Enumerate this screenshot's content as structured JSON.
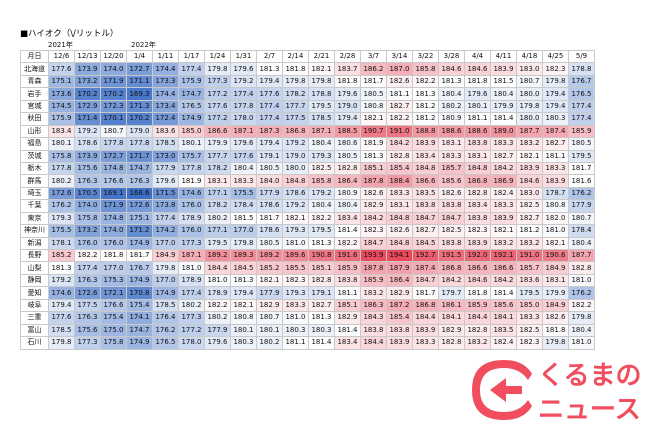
{
  "title": "■ハイオク（\\/リットル）",
  "year_labels": {
    "y2021": "2021年",
    "y2022": "2022年"
  },
  "header": {
    "pref_label": "月日",
    "dates": [
      "12/6",
      "12/13",
      "12/20",
      "1/4",
      "1/11",
      "1/17",
      "1/24",
      "1/31",
      "2/7",
      "2/14",
      "2/21",
      "2/28",
      "3/7",
      "3/14",
      "3/22",
      "3/28",
      "4/4",
      "4/11",
      "4/18",
      "4/25",
      "5/9"
    ]
  },
  "rows": [
    {
      "pref": "北海道",
      "values": [
        "177.6",
        "173.9",
        "174.0",
        "172.7",
        "174.4",
        "177.4",
        "179.8",
        "179.6",
        "181.3",
        "181.8",
        "182.1",
        "183.7",
        "186.2",
        "187.0",
        "185.8",
        "184.6",
        "184.6",
        "183.9",
        "183.0",
        "182.3",
        "178.8"
      ]
    },
    {
      "pref": "青森",
      "values": [
        "175.1",
        "173.2",
        "171.9",
        "171.1",
        "173.3",
        "175.9",
        "177.3",
        "179.2",
        "179.4",
        "179.8",
        "179.8",
        "181.8",
        "181.7",
        "182.6",
        "182.2",
        "181.3",
        "181.8",
        "181.5",
        "180.7",
        "179.8",
        "176.7"
      ]
    },
    {
      "pref": "岩手",
      "values": [
        "173.6",
        "170.2",
        "170.2",
        "169.3",
        "174.4",
        "174.7",
        "177.2",
        "177.4",
        "177.6",
        "178.2",
        "178.8",
        "179.6",
        "180.5",
        "181.1",
        "181.3",
        "180.4",
        "179.6",
        "180.4",
        "180.0",
        "179.4",
        "176.5"
      ]
    },
    {
      "pref": "宮城",
      "values": [
        "174.5",
        "172.9",
        "172.3",
        "171.3",
        "173.4",
        "176.5",
        "177.6",
        "177.8",
        "177.4",
        "177.7",
        "179.5",
        "179.0",
        "180.8",
        "182.7",
        "181.2",
        "180.2",
        "180.1",
        "179.9",
        "179.8",
        "179.4",
        "177.4"
      ]
    },
    {
      "pref": "秋田",
      "values": [
        "175.9",
        "171.4",
        "170.1",
        "170.2",
        "172.4",
        "174.9",
        "177.2",
        "178.0",
        "177.4",
        "177.5",
        "178.5",
        "179.4",
        "182.1",
        "182.2",
        "181.2",
        "180.9",
        "181.1",
        "181.4",
        "180.0",
        "180.3",
        "177.4"
      ]
    },
    {
      "pref": "山形",
      "values": [
        "183.4",
        "179.2",
        "180.7",
        "179.0",
        "183.6",
        "185.0",
        "186.6",
        "187.1",
        "187.3",
        "186.8",
        "187.1",
        "188.5",
        "190.7",
        "191.0",
        "188.8",
        "188.6",
        "188.6",
        "189.0",
        "187.7",
        "187.4",
        "185.9"
      ]
    },
    {
      "pref": "福島",
      "values": [
        "180.1",
        "178.6",
        "177.8",
        "177.8",
        "178.5",
        "180.1",
        "179.9",
        "179.6",
        "179.4",
        "179.2",
        "180.4",
        "180.6",
        "181.9",
        "184.2",
        "183.9",
        "183.1",
        "183.8",
        "183.3",
        "183.2",
        "182.7",
        "180.5"
      ]
    },
    {
      "pref": "茨城",
      "values": [
        "175.8",
        "173.9",
        "172.7",
        "171.7",
        "173.0",
        "175.7",
        "177.7",
        "177.6",
        "179.1",
        "179.0",
        "179.3",
        "180.5",
        "181.3",
        "182.8",
        "183.4",
        "183.3",
        "183.1",
        "182.7",
        "182.1",
        "181.1",
        "179.5"
      ]
    },
    {
      "pref": "栃木",
      "values": [
        "177.8",
        "175.6",
        "174.8",
        "174.7",
        "177.9",
        "177.8",
        "178.2",
        "180.4",
        "180.5",
        "180.0",
        "182.5",
        "182.8",
        "185.1",
        "185.4",
        "184.8",
        "185.7",
        "184.8",
        "184.2",
        "183.9",
        "183.3",
        "181.7"
      ]
    },
    {
      "pref": "群馬",
      "values": [
        "180.2",
        "176.3",
        "176.6",
        "176.3",
        "179.6",
        "181.9",
        "183.1",
        "183.3",
        "184.0",
        "184.8",
        "185.8",
        "186.4",
        "187.8",
        "188.4",
        "186.6",
        "185.6",
        "186.8",
        "186.9",
        "184.6",
        "183.9",
        "181.6"
      ]
    },
    {
      "pref": "埼玉",
      "values": [
        "172.6",
        "170.5",
        "169.1",
        "168.6",
        "171.5",
        "174.6",
        "177.1",
        "175.5",
        "177.9",
        "178.6",
        "179.2",
        "180.9",
        "182.6",
        "183.3",
        "183.5",
        "182.6",
        "182.8",
        "182.4",
        "183.0",
        "178.7",
        "176.2"
      ]
    },
    {
      "pref": "千葉",
      "values": [
        "176.2",
        "174.0",
        "171.9",
        "172.6",
        "173.8",
        "176.0",
        "178.2",
        "178.4",
        "178.6",
        "179.2",
        "180.4",
        "180.4",
        "182.9",
        "183.1",
        "183.8",
        "183.8",
        "183.4",
        "183.3",
        "182.5",
        "180.8",
        "177.9"
      ]
    },
    {
      "pref": "東京",
      "values": [
        "179.3",
        "175.8",
        "174.8",
        "175.1",
        "177.4",
        "178.9",
        "180.2",
        "181.5",
        "181.7",
        "182.1",
        "182.2",
        "183.4",
        "184.2",
        "184.8",
        "184.7",
        "184.7",
        "183.8",
        "183.9",
        "182.7",
        "182.0",
        "180.7"
      ]
    },
    {
      "pref": "神奈川",
      "values": [
        "175.5",
        "173.2",
        "174.0",
        "171.2",
        "174.2",
        "176.0",
        "177.1",
        "177.0",
        "178.6",
        "179.3",
        "179.5",
        "181.4",
        "182.3",
        "182.6",
        "182.7",
        "182.5",
        "182.3",
        "182.1",
        "181.2",
        "181.0",
        "178.4"
      ]
    },
    {
      "pref": "新潟",
      "values": [
        "178.1",
        "176.0",
        "176.0",
        "174.9",
        "177.0",
        "177.3",
        "179.5",
        "179.8",
        "180.5",
        "181.0",
        "181.3",
        "182.2",
        "184.7",
        "184.8",
        "184.5",
        "183.8",
        "183.9",
        "183.2",
        "183.2",
        "182.1",
        "180.4"
      ]
    },
    {
      "pref": "長野",
      "values": [
        "185.2",
        "182.2",
        "181.8",
        "181.7",
        "184.9",
        "187.1",
        "189.2",
        "189.3",
        "189.2",
        "189.6",
        "190.8",
        "191.6",
        "193.9",
        "194.1",
        "192.7",
        "191.5",
        "192.0",
        "192.1",
        "191.0",
        "190.6",
        "187.7"
      ]
    },
    {
      "pref": "山梨",
      "values": [
        "181.3",
        "177.4",
        "177.0",
        "176.7",
        "179.8",
        "181.0",
        "184.4",
        "184.5",
        "185.2",
        "185.5",
        "185.1",
        "185.9",
        "187.8",
        "187.9",
        "187.4",
        "186.8",
        "186.6",
        "186.6",
        "185.7",
        "184.9",
        "182.8"
      ]
    },
    {
      "pref": "静岡",
      "values": [
        "179.2",
        "176.3",
        "175.3",
        "174.9",
        "177.0",
        "178.9",
        "181.0",
        "181.3",
        "182.1",
        "182.3",
        "182.8",
        "183.8",
        "185.9",
        "186.4",
        "184.7",
        "184.2",
        "184.6",
        "184.2",
        "183.6",
        "183.1",
        "181.0"
      ]
    },
    {
      "pref": "愛知",
      "values": [
        "174.6",
        "172.6",
        "172.1",
        "170.8",
        "174.9",
        "177.4",
        "178.9",
        "179.4",
        "177.9",
        "179.3",
        "179.1",
        "181.1",
        "183.2",
        "182.9",
        "181.7",
        "179.7",
        "181.8",
        "181.4",
        "179.5",
        "179.9",
        "176.2"
      ]
    },
    {
      "pref": "岐阜",
      "values": [
        "179.4",
        "177.5",
        "176.6",
        "175.4",
        "178.5",
        "180.2",
        "182.2",
        "182.1",
        "182.9",
        "183.3",
        "182.7",
        "185.1",
        "186.3",
        "187.2",
        "186.8",
        "186.1",
        "185.9",
        "185.6",
        "185.0",
        "184.9",
        "182.2"
      ]
    },
    {
      "pref": "三重",
      "values": [
        "177.6",
        "176.3",
        "175.4",
        "174.1",
        "176.4",
        "177.3",
        "180.2",
        "180.8",
        "180.7",
        "181.0",
        "181.3",
        "182.9",
        "184.3",
        "185.4",
        "184.4",
        "184.1",
        "184.4",
        "184.1",
        "183.3",
        "182.6",
        "179.8"
      ]
    },
    {
      "pref": "富山",
      "values": [
        "178.5",
        "175.6",
        "175.0",
        "174.7",
        "176.2",
        "177.2",
        "177.9",
        "180.1",
        "180.1",
        "180.3",
        "180.3",
        "181.4",
        "183.8",
        "183.8",
        "183.9",
        "182.9",
        "182.8",
        "183.5",
        "182.5",
        "181.8",
        "180.4"
      ]
    },
    {
      "pref": "石川",
      "values": [
        "179.8",
        "177.3",
        "175.8",
        "174.9",
        "176.5",
        "178.0",
        "179.6",
        "180.3",
        "180.2",
        "181.1",
        "181.4",
        "183.4",
        "184.4",
        "183.9",
        "183.3",
        "182.8",
        "183.2",
        "182.4",
        "182.3",
        "179.8",
        "181.0"
      ]
    }
  ],
  "color_scale": {
    "low": "#3d6fc6",
    "mid": "#ffffff",
    "high": "#e8485a"
  },
  "logo": {
    "line1": "くるまの",
    "line2": "ニュース",
    "color": "#f04e5e"
  }
}
